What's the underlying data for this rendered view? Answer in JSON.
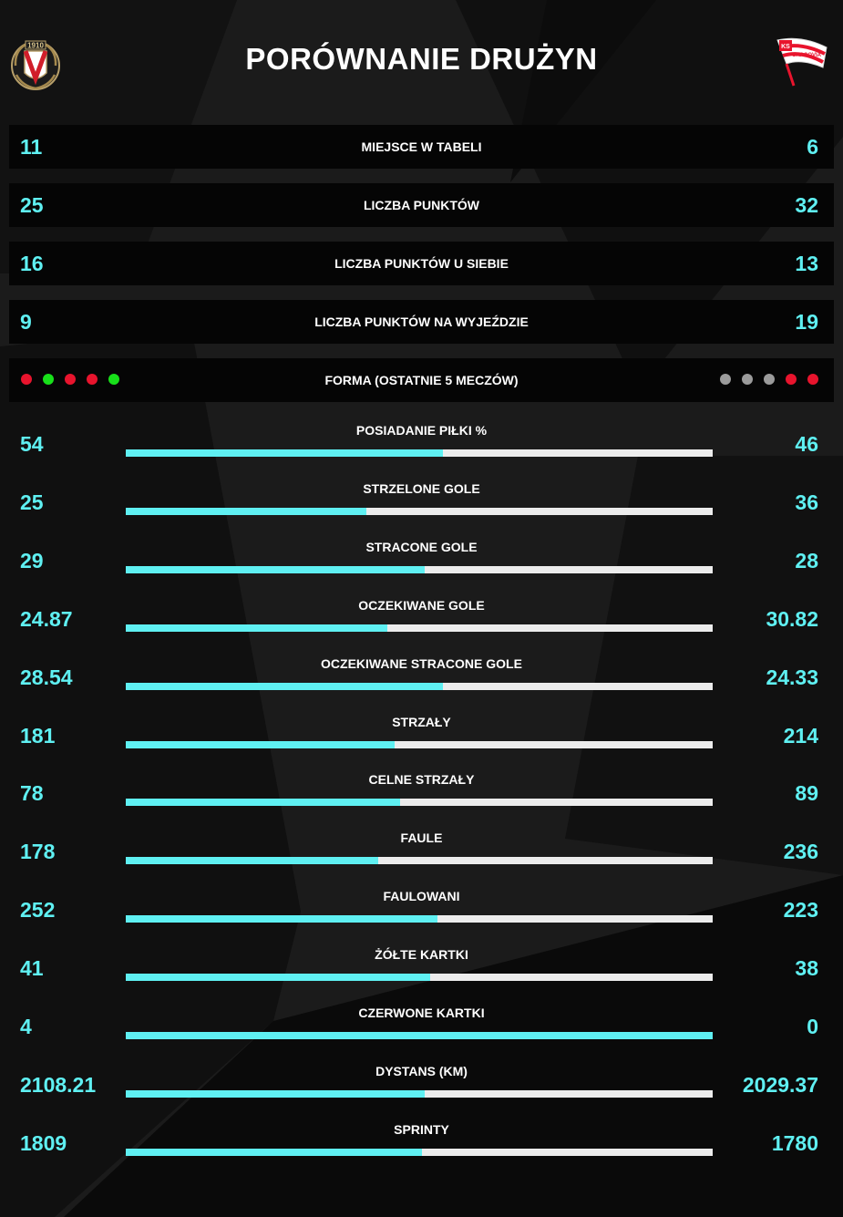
{
  "title": "PORÓWNANIE DRUŻYN",
  "home_team": {
    "logo_text": "1910",
    "icon": "widzew-crest-icon"
  },
  "away_team": {
    "logo_text": "KS CRACOVIA",
    "icon": "cracovia-flag-icon"
  },
  "colors": {
    "accent": "#5ff0f2",
    "bar_bg": "#ececec",
    "win": "#18e01a",
    "loss": "#e8142d",
    "draw": "#9b9b9b"
  },
  "boxed_rows": [
    {
      "label": "MIEJSCE W TABELI",
      "home": "11",
      "away": "6"
    },
    {
      "label": "LICZBA PUNKTÓW",
      "home": "25",
      "away": "32"
    },
    {
      "label": "LICZBA PUNKTÓW U SIEBIE",
      "home": "16",
      "away": "13"
    },
    {
      "label": "LICZBA PUNKTÓW NA WYJEŹDZIE",
      "home": "9",
      "away": "19"
    }
  ],
  "form": {
    "label": "FORMA (OSTATNIE 5 MECZÓW)",
    "home": [
      "loss",
      "win",
      "loss",
      "loss",
      "win"
    ],
    "away": [
      "draw",
      "draw",
      "draw",
      "loss",
      "loss"
    ]
  },
  "stats": [
    {
      "label": "POSIADANIE PIŁKI %",
      "home": "54",
      "away": "46",
      "home_share": 0.54
    },
    {
      "label": "STRZELONE GOLE",
      "home": "25",
      "away": "36",
      "home_share": 0.41
    },
    {
      "label": "STRACONE GOLE",
      "home": "29",
      "away": "28",
      "home_share": 0.51
    },
    {
      "label": "OCZEKIWANE GOLE",
      "home": "24.87",
      "away": "30.82",
      "home_share": 0.445
    },
    {
      "label": "OCZEKIWANE STRACONE GOLE",
      "home": "28.54",
      "away": "24.33",
      "home_share": 0.54
    },
    {
      "label": "STRZAŁY",
      "home": "181",
      "away": "214",
      "home_share": 0.458
    },
    {
      "label": "CELNE STRZAŁY",
      "home": "78",
      "away": "89",
      "home_share": 0.467
    },
    {
      "label": "FAULE",
      "home": "178",
      "away": "236",
      "home_share": 0.43
    },
    {
      "label": "FAULOWANI",
      "home": "252",
      "away": "223",
      "home_share": 0.531
    },
    {
      "label": "ŻÓŁTE KARTKI",
      "home": "41",
      "away": "38",
      "home_share": 0.519
    },
    {
      "label": "CZERWONE KARTKI",
      "home": "4",
      "away": "0",
      "home_share": 1.0
    },
    {
      "label": "DYSTANS (KM)",
      "home": "2108.21",
      "away": "2029.37",
      "home_share": 0.509
    },
    {
      "label": "SPRINTY",
      "home": "1809",
      "away": "1780",
      "home_share": 0.504
    }
  ]
}
